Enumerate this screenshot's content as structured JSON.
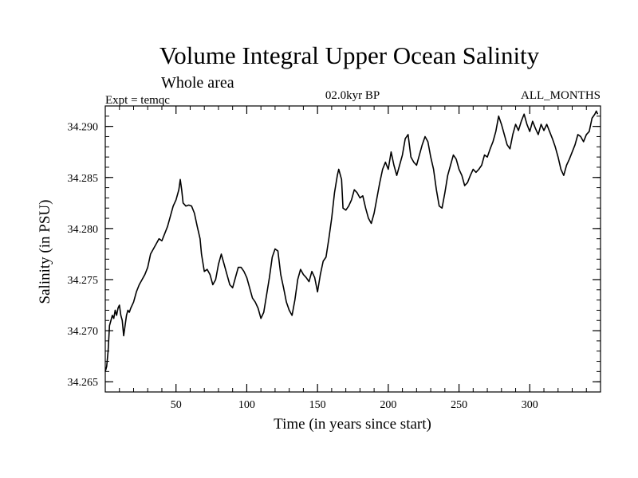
{
  "chart_data": {
    "type": "line",
    "title": "Volume Integral Upper Ocean Salinity",
    "subtitle": "Whole area",
    "left_note": "Expt = temqc",
    "center_note": "02.0kyr BP",
    "right_note": "ALL_MONTHS",
    "xlabel": "Time (in years since start)",
    "ylabel": "Salinity (in PSU)",
    "xlim": [
      0,
      350
    ],
    "ylim": [
      34.264,
      34.292
    ],
    "x_ticks": [
      {
        "value": 50,
        "label": "50"
      },
      {
        "value": 100,
        "label": "100"
      },
      {
        "value": 150,
        "label": "150"
      },
      {
        "value": 200,
        "label": "200"
      },
      {
        "value": 250,
        "label": "250"
      },
      {
        "value": 300,
        "label": "300"
      }
    ],
    "y_ticks": [
      {
        "value": 34.265,
        "label": "34.265"
      },
      {
        "value": 34.27,
        "label": "34.270"
      },
      {
        "value": 34.275,
        "label": "34.275"
      },
      {
        "value": 34.28,
        "label": "34.280"
      },
      {
        "value": 34.285,
        "label": "34.285"
      },
      {
        "value": 34.29,
        "label": "34.290"
      }
    ],
    "series": [
      {
        "name": "Salinity",
        "color": "#000000",
        "points": [
          [
            0,
            34.266
          ],
          [
            1,
            34.2665
          ],
          [
            2,
            34.268
          ],
          [
            3,
            34.2705
          ],
          [
            4,
            34.271
          ],
          [
            5,
            34.2715
          ],
          [
            6,
            34.2712
          ],
          [
            7,
            34.272
          ],
          [
            8,
            34.2715
          ],
          [
            9,
            34.2722
          ],
          [
            10,
            34.2725
          ],
          [
            11,
            34.2715
          ],
          [
            12,
            34.271
          ],
          [
            13,
            34.2695
          ],
          [
            14,
            34.2705
          ],
          [
            15,
            34.2715
          ],
          [
            16,
            34.272
          ],
          [
            17,
            34.2718
          ],
          [
            18,
            34.2722
          ],
          [
            20,
            34.2728
          ],
          [
            22,
            34.2738
          ],
          [
            24,
            34.2745
          ],
          [
            26,
            34.275
          ],
          [
            28,
            34.2755
          ],
          [
            30,
            34.2762
          ],
          [
            32,
            34.2775
          ],
          [
            34,
            34.278
          ],
          [
            36,
            34.2785
          ],
          [
            38,
            34.279
          ],
          [
            40,
            34.2788
          ],
          [
            42,
            34.2795
          ],
          [
            44,
            34.2802
          ],
          [
            46,
            34.2812
          ],
          [
            48,
            34.2822
          ],
          [
            50,
            34.2828
          ],
          [
            52,
            34.2838
          ],
          [
            53,
            34.2848
          ],
          [
            54,
            34.2838
          ],
          [
            55,
            34.2825
          ],
          [
            57,
            34.2822
          ],
          [
            59,
            34.2823
          ],
          [
            61,
            34.2822
          ],
          [
            63,
            34.2815
          ],
          [
            65,
            34.2802
          ],
          [
            67,
            34.279
          ],
          [
            68,
            34.2775
          ],
          [
            70,
            34.2758
          ],
          [
            72,
            34.276
          ],
          [
            74,
            34.2755
          ],
          [
            76,
            34.2745
          ],
          [
            78,
            34.275
          ],
          [
            80,
            34.2765
          ],
          [
            82,
            34.2775
          ],
          [
            84,
            34.2765
          ],
          [
            86,
            34.2755
          ],
          [
            88,
            34.2745
          ],
          [
            90,
            34.2742
          ],
          [
            92,
            34.2752
          ],
          [
            94,
            34.2762
          ],
          [
            96,
            34.2762
          ],
          [
            98,
            34.2758
          ],
          [
            100,
            34.2752
          ],
          [
            102,
            34.2742
          ],
          [
            104,
            34.2732
          ],
          [
            106,
            34.2728
          ],
          [
            108,
            34.2722
          ],
          [
            110,
            34.2712
          ],
          [
            112,
            34.2718
          ],
          [
            114,
            34.2735
          ],
          [
            116,
            34.2752
          ],
          [
            118,
            34.2772
          ],
          [
            120,
            34.278
          ],
          [
            122,
            34.2778
          ],
          [
            124,
            34.2755
          ],
          [
            126,
            34.2742
          ],
          [
            128,
            34.2728
          ],
          [
            130,
            34.272
          ],
          [
            132,
            34.2715
          ],
          [
            134,
            34.273
          ],
          [
            136,
            34.275
          ],
          [
            138,
            34.276
          ],
          [
            140,
            34.2755
          ],
          [
            142,
            34.2752
          ],
          [
            144,
            34.2748
          ],
          [
            146,
            34.2758
          ],
          [
            148,
            34.2752
          ],
          [
            150,
            34.2738
          ],
          [
            152,
            34.2755
          ],
          [
            154,
            34.2768
          ],
          [
            156,
            34.2772
          ],
          [
            158,
            34.279
          ],
          [
            160,
            34.281
          ],
          [
            162,
            34.2835
          ],
          [
            164,
            34.2852
          ],
          [
            165,
            34.2858
          ],
          [
            167,
            34.2848
          ],
          [
            168,
            34.282
          ],
          [
            170,
            34.2818
          ],
          [
            172,
            34.2822
          ],
          [
            174,
            34.2828
          ],
          [
            176,
            34.2838
          ],
          [
            178,
            34.2835
          ],
          [
            180,
            34.283
          ],
          [
            182,
            34.2832
          ],
          [
            184,
            34.282
          ],
          [
            186,
            34.281
          ],
          [
            188,
            34.2805
          ],
          [
            190,
            34.2815
          ],
          [
            192,
            34.283
          ],
          [
            194,
            34.2845
          ],
          [
            196,
            34.2858
          ],
          [
            198,
            34.2865
          ],
          [
            200,
            34.2858
          ],
          [
            202,
            34.2875
          ],
          [
            204,
            34.2862
          ],
          [
            206,
            34.2852
          ],
          [
            208,
            34.2862
          ],
          [
            210,
            34.2872
          ],
          [
            212,
            34.2888
          ],
          [
            214,
            34.2892
          ],
          [
            216,
            34.287
          ],
          [
            218,
            34.2865
          ],
          [
            220,
            34.2862
          ],
          [
            222,
            34.2872
          ],
          [
            224,
            34.2882
          ],
          [
            226,
            34.289
          ],
          [
            228,
            34.2885
          ],
          [
            230,
            34.287
          ],
          [
            232,
            34.2858
          ],
          [
            234,
            34.2838
          ],
          [
            236,
            34.2822
          ],
          [
            238,
            34.282
          ],
          [
            240,
            34.2835
          ],
          [
            242,
            34.2852
          ],
          [
            244,
            34.2862
          ],
          [
            246,
            34.2872
          ],
          [
            248,
            34.2868
          ],
          [
            250,
            34.2858
          ],
          [
            252,
            34.2852
          ],
          [
            254,
            34.2842
          ],
          [
            256,
            34.2845
          ],
          [
            258,
            34.2852
          ],
          [
            260,
            34.2858
          ],
          [
            262,
            34.2855
          ],
          [
            264,
            34.2858
          ],
          [
            266,
            34.2862
          ],
          [
            268,
            34.2872
          ],
          [
            270,
            34.287
          ],
          [
            272,
            34.2878
          ],
          [
            274,
            34.2885
          ],
          [
            276,
            34.2895
          ],
          [
            278,
            34.291
          ],
          [
            280,
            34.2902
          ],
          [
            282,
            34.2892
          ],
          [
            284,
            34.2882
          ],
          [
            286,
            34.2878
          ],
          [
            288,
            34.2892
          ],
          [
            290,
            34.2902
          ],
          [
            292,
            34.2896
          ],
          [
            294,
            34.2905
          ],
          [
            296,
            34.2912
          ],
          [
            298,
            34.2902
          ],
          [
            300,
            34.2895
          ],
          [
            302,
            34.2905
          ],
          [
            304,
            34.2898
          ],
          [
            306,
            34.2892
          ],
          [
            308,
            34.2902
          ],
          [
            310,
            34.2896
          ],
          [
            312,
            34.2902
          ],
          [
            314,
            34.2895
          ],
          [
            316,
            34.2888
          ],
          [
            318,
            34.288
          ],
          [
            320,
            34.287
          ],
          [
            322,
            34.2858
          ],
          [
            324,
            34.2852
          ],
          [
            326,
            34.2862
          ],
          [
            328,
            34.2868
          ],
          [
            330,
            34.2875
          ],
          [
            332,
            34.2882
          ],
          [
            334,
            34.2892
          ],
          [
            336,
            34.289
          ],
          [
            338,
            34.2885
          ],
          [
            340,
            34.2892
          ],
          [
            342,
            34.2895
          ],
          [
            344,
            34.2908
          ],
          [
            346,
            34.2912
          ],
          [
            347,
            34.2915
          ],
          [
            348,
            34.2912
          ]
        ]
      }
    ]
  }
}
